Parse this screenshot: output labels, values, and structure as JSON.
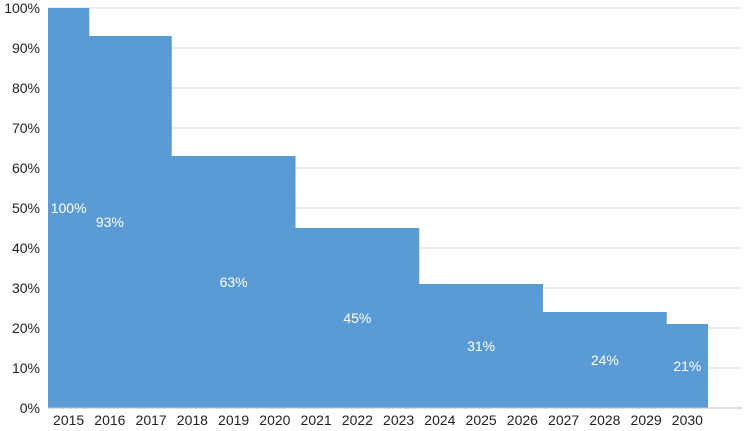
{
  "chart_data": {
    "type": "area",
    "step": true,
    "categories": [
      "2015",
      "2016",
      "2017",
      "2018",
      "2019",
      "2020",
      "2021",
      "2022",
      "2023",
      "2024",
      "2025",
      "2026",
      "2027",
      "2028",
      "2029",
      "2030"
    ],
    "values": [
      100,
      93,
      93,
      63,
      63,
      63,
      45,
      45,
      45,
      31,
      31,
      31,
      24,
      24,
      24,
      21
    ],
    "data_labels": [
      {
        "category": "2015",
        "value": 100,
        "text": "100%"
      },
      {
        "category": "2016",
        "value": 93,
        "text": "93%"
      },
      {
        "category": "2019",
        "value": 63,
        "text": "63%"
      },
      {
        "category": "2022",
        "value": 45,
        "text": "45%"
      },
      {
        "category": "2025",
        "value": 31,
        "text": "31%"
      },
      {
        "category": "2028",
        "value": 24,
        "text": "24%"
      },
      {
        "category": "2030",
        "value": 21,
        "text": "21%"
      }
    ],
    "yticks": [
      "0%",
      "10%",
      "20%",
      "30%",
      "40%",
      "50%",
      "60%",
      "70%",
      "80%",
      "90%",
      "100%"
    ],
    "ylim": [
      0,
      100
    ],
    "grid": true,
    "fill_color": "#5b9bd5",
    "title": "",
    "xlabel": "",
    "ylabel": ""
  }
}
